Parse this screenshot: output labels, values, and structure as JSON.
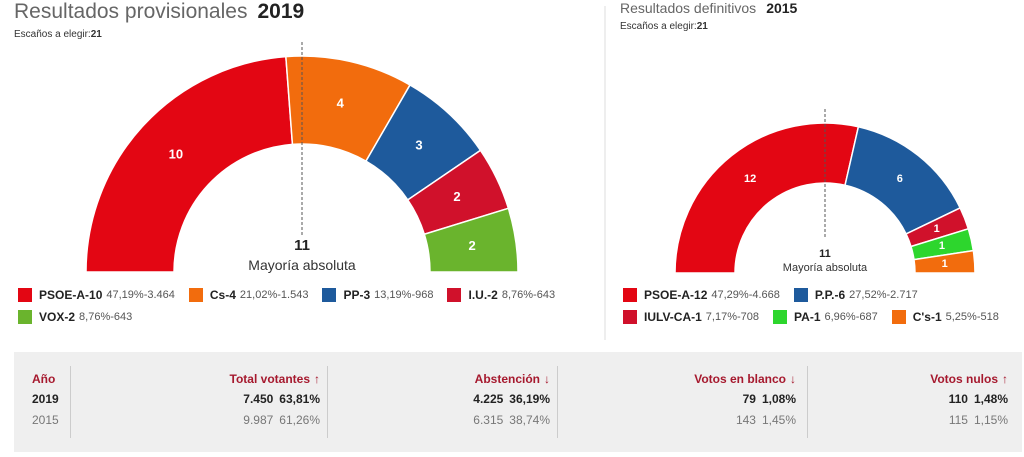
{
  "chart_data": [
    {
      "type": "hemicycle",
      "title": "Resultados provisionales",
      "year": "2019",
      "subtitle": "Escaños a elegir:",
      "seats": "21",
      "majority": "11",
      "majority_label": "Mayoría absoluta",
      "categories": [
        "PSOE-A",
        "Cs",
        "PP",
        "I.U.",
        "VOX"
      ],
      "values": [
        10,
        4,
        3,
        2,
        2
      ],
      "colors": [
        "#e30613",
        "#f26c0d",
        "#1e5a9c",
        "#d0112b",
        "#6ab42d"
      ],
      "percent": [
        "47,19%",
        "21,02%",
        "13,19%",
        "8,76%",
        "8,76%"
      ],
      "votes": [
        "3.464",
        "1.543",
        "968",
        "643",
        "643"
      ]
    },
    {
      "type": "hemicycle",
      "title": "Resultados definitivos",
      "year": "2015",
      "subtitle": "Escaños a elegir:",
      "seats": "21",
      "majority": "11",
      "majority_label": "Mayoría absoluta",
      "categories": [
        "PSOE-A",
        "P.P.",
        "IULV-CA",
        "PA",
        "C's"
      ],
      "values": [
        12,
        6,
        1,
        1,
        1
      ],
      "colors": [
        "#e30613",
        "#1e5a9c",
        "#d0112b",
        "#2dd62d",
        "#f26c0d"
      ],
      "percent": [
        "47,29%",
        "27,52%",
        "7,17%",
        "6,96%",
        "5,25%"
      ],
      "votes": [
        "4.668",
        "2.717",
        "708",
        "687",
        "518"
      ]
    }
  ],
  "table": {
    "headers": [
      "Año",
      "Total votantes",
      "Abstención",
      "Votos en blanco",
      "Votos nulos"
    ],
    "rows": [
      [
        "2019",
        "7.450",
        "63,81%",
        "4.225",
        "36,19%",
        "79",
        "1,08%",
        "110",
        "1,48%"
      ],
      [
        "2015",
        "9.987",
        "61,26%",
        "6.315",
        "38,74%",
        "143",
        "1,45%",
        "115",
        "1,15%"
      ]
    ]
  }
}
